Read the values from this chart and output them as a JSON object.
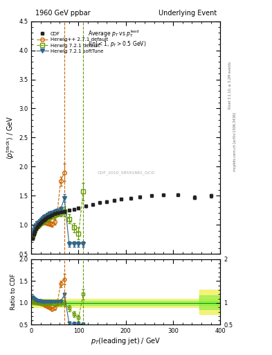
{
  "title_left": "1960 GeV ppbar",
  "title_right": "Underlying Event",
  "watermark": "CDF_2010_S8591881_QCD",
  "ylim_main": [
    0.5,
    4.5
  ],
  "ylim_ratio": [
    0.5,
    2.0
  ],
  "xlim": [
    0,
    400
  ],
  "vline_orange": 70,
  "vline_green": 110,
  "cdf_x": [
    2,
    5,
    7,
    10,
    13,
    16,
    19,
    22,
    25,
    28,
    31,
    35,
    39,
    44,
    49,
    55,
    62,
    70,
    80,
    90,
    100,
    115,
    130,
    145,
    160,
    175,
    190,
    210,
    230,
    255,
    280,
    310,
    345,
    380
  ],
  "cdf_y": [
    0.76,
    0.83,
    0.88,
    0.93,
    0.97,
    1.0,
    1.02,
    1.05,
    1.07,
    1.09,
    1.11,
    1.13,
    1.15,
    1.17,
    1.19,
    1.21,
    1.22,
    1.23,
    1.25,
    1.27,
    1.29,
    1.32,
    1.35,
    1.38,
    1.4,
    1.42,
    1.44,
    1.46,
    1.48,
    1.5,
    1.51,
    1.52,
    1.47,
    1.5
  ],
  "cdf_yerr": [
    0.02,
    0.02,
    0.02,
    0.02,
    0.02,
    0.02,
    0.02,
    0.02,
    0.02,
    0.02,
    0.02,
    0.02,
    0.02,
    0.02,
    0.02,
    0.02,
    0.02,
    0.02,
    0.02,
    0.02,
    0.02,
    0.02,
    0.02,
    0.02,
    0.02,
    0.02,
    0.02,
    0.02,
    0.02,
    0.02,
    0.02,
    0.02,
    0.03,
    0.03
  ],
  "herwig_pp_x": [
    2,
    5,
    7,
    10,
    13,
    16,
    19,
    22,
    25,
    28,
    31,
    35,
    39,
    44,
    49,
    55,
    62,
    70
  ],
  "herwig_pp_y": [
    0.8,
    0.87,
    0.91,
    0.95,
    0.98,
    1.0,
    1.02,
    1.04,
    1.05,
    1.05,
    1.04,
    1.03,
    1.02,
    1.01,
    1.05,
    1.2,
    1.75,
    1.9
  ],
  "herwig_pp_yerr": [
    0.05,
    0.05,
    0.04,
    0.04,
    0.04,
    0.04,
    0.04,
    0.04,
    0.04,
    0.04,
    0.04,
    0.04,
    0.04,
    0.04,
    0.05,
    0.06,
    0.08,
    0.15
  ],
  "herwig72_x": [
    2,
    5,
    7,
    10,
    13,
    16,
    19,
    22,
    25,
    28,
    31,
    35,
    39,
    44,
    49,
    55,
    62,
    70,
    80,
    90,
    100,
    110
  ],
  "herwig72_y": [
    0.8,
    0.87,
    0.91,
    0.95,
    0.98,
    1.0,
    1.02,
    1.04,
    1.06,
    1.08,
    1.09,
    1.11,
    1.13,
    1.15,
    1.17,
    1.19,
    1.21,
    1.23,
    1.1,
    0.95,
    0.85,
    1.57
  ],
  "herwig72_yerr": [
    0.05,
    0.05,
    0.04,
    0.04,
    0.04,
    0.04,
    0.04,
    0.04,
    0.04,
    0.04,
    0.04,
    0.04,
    0.04,
    0.04,
    0.05,
    0.05,
    0.06,
    0.08,
    0.08,
    0.08,
    0.1,
    0.15
  ],
  "herwig72soft_x": [
    2,
    5,
    7,
    10,
    13,
    16,
    19,
    22,
    25,
    28,
    31,
    35,
    39,
    44,
    49,
    55,
    62,
    70,
    80,
    90,
    100,
    110
  ],
  "herwig72soft_y": [
    0.85,
    0.91,
    0.95,
    0.99,
    1.02,
    1.04,
    1.06,
    1.09,
    1.11,
    1.13,
    1.15,
    1.17,
    1.19,
    1.2,
    1.22,
    1.24,
    1.26,
    1.46,
    0.67,
    0.67,
    0.67,
    0.67
  ],
  "herwig72soft_yerr": [
    0.04,
    0.04,
    0.04,
    0.04,
    0.03,
    0.03,
    0.03,
    0.03,
    0.03,
    0.03,
    0.03,
    0.03,
    0.03,
    0.03,
    0.04,
    0.04,
    0.05,
    0.07,
    0.05,
    0.05,
    0.05,
    0.05
  ],
  "color_cdf": "#222222",
  "color_herwig_pp": "#cc6600",
  "color_herwig72": "#669900",
  "color_herwig72soft": "#336688",
  "color_vline_orange": "#cc6600",
  "color_vline_green": "#669900"
}
